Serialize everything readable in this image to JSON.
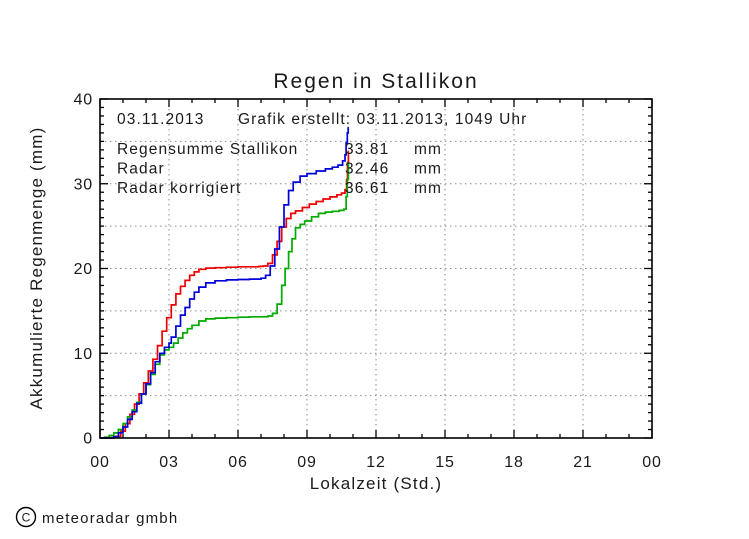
{
  "title": "Regen in Stallikon",
  "axes": {
    "y_label": "Akkumulierte Regenmenge (mm)",
    "x_label": "Lokalzeit (Std.)"
  },
  "annotation": {
    "date": "03.11.2013",
    "created": "Grafik erstellt: 03.11.2013, 1049 Uhr"
  },
  "legend": {
    "rows": [
      {
        "label": "Regensumme Stallikon",
        "value": "33.81",
        "unit": "mm",
        "color": "#ee0000"
      },
      {
        "label": "Radar",
        "value": "32.46",
        "unit": "mm",
        "color": "#00aa00"
      },
      {
        "label": "Radar korrigiert",
        "value": "36.61",
        "unit": "mm",
        "color": "#0000dd"
      }
    ]
  },
  "footer": {
    "copyright_symbol": "C",
    "copyright_text": "meteoradar gmbh"
  },
  "chart_data": {
    "type": "line",
    "title": "Regen in Stallikon",
    "xlabel": "Lokalzeit (Std.)",
    "ylabel": "Akkumulierte Regenmenge (mm)",
    "xlim": [
      0,
      24
    ],
    "ylim": [
      0,
      40
    ],
    "x_unit": "hours_local_time",
    "y_unit": "mm",
    "x_major_ticks": [
      0,
      3,
      6,
      9,
      12,
      15,
      18,
      21,
      24
    ],
    "x_tick_labels": [
      "00",
      "03",
      "06",
      "09",
      "12",
      "15",
      "18",
      "21",
      "00"
    ],
    "x_minor_step": 1,
    "y_major_ticks": [
      0,
      10,
      20,
      30,
      40
    ],
    "y_tick_labels": [
      "0",
      "10",
      "20",
      "30",
      "40"
    ],
    "y_minor_step": 1,
    "grid": {
      "style": "dotted",
      "x_lines": [
        3,
        6,
        9,
        12,
        15,
        18,
        21
      ],
      "y_lines": [
        5,
        10,
        15,
        20,
        25,
        30,
        35
      ]
    },
    "legend_position": "top-left-inside",
    "series": [
      {
        "name": "Regensumme Stallikon",
        "color": "#ee0000",
        "total_mm": 33.81,
        "points": [
          [
            0,
            0
          ],
          [
            0.5,
            0.05
          ],
          [
            0.7,
            0.2
          ],
          [
            0.9,
            0.8
          ],
          [
            1.1,
            1.7
          ],
          [
            1.3,
            2.8
          ],
          [
            1.5,
            4.0
          ],
          [
            1.7,
            5.2
          ],
          [
            1.9,
            6.5
          ],
          [
            2.1,
            7.9
          ],
          [
            2.3,
            9.3
          ],
          [
            2.5,
            10.9
          ],
          [
            2.7,
            12.6
          ],
          [
            2.9,
            14.2
          ],
          [
            3.1,
            15.7
          ],
          [
            3.3,
            17.0
          ],
          [
            3.5,
            17.9
          ],
          [
            3.7,
            18.6
          ],
          [
            3.9,
            19.2
          ],
          [
            4.1,
            19.6
          ],
          [
            4.3,
            19.9
          ],
          [
            4.6,
            20.05
          ],
          [
            5.0,
            20.1
          ],
          [
            5.5,
            20.15
          ],
          [
            6.0,
            20.2
          ],
          [
            6.5,
            20.2
          ],
          [
            6.9,
            20.25
          ],
          [
            7.1,
            20.3
          ],
          [
            7.3,
            20.6
          ],
          [
            7.5,
            21.6
          ],
          [
            7.7,
            23.2
          ],
          [
            7.9,
            24.9
          ],
          [
            8.1,
            25.9
          ],
          [
            8.3,
            26.5
          ],
          [
            8.5,
            26.8
          ],
          [
            8.8,
            27.2
          ],
          [
            9.1,
            27.6
          ],
          [
            9.4,
            27.9
          ],
          [
            9.7,
            28.2
          ],
          [
            10.0,
            28.45
          ],
          [
            10.3,
            28.7
          ],
          [
            10.5,
            28.9
          ],
          [
            10.65,
            29.3
          ],
          [
            10.72,
            30.5
          ],
          [
            10.76,
            32.5
          ],
          [
            10.8,
            33.81
          ],
          [
            10.82,
            33.81
          ]
        ]
      },
      {
        "name": "Radar",
        "color": "#00aa00",
        "total_mm": 32.46,
        "points": [
          [
            0,
            0
          ],
          [
            0.2,
            0.1
          ],
          [
            0.4,
            0.3
          ],
          [
            0.6,
            0.6
          ],
          [
            0.8,
            1.0
          ],
          [
            1.0,
            1.7
          ],
          [
            1.2,
            2.5
          ],
          [
            1.4,
            3.3
          ],
          [
            1.6,
            4.2
          ],
          [
            1.8,
            5.2
          ],
          [
            2.0,
            6.3
          ],
          [
            2.2,
            7.5
          ],
          [
            2.4,
            8.7
          ],
          [
            2.6,
            9.8
          ],
          [
            2.8,
            10.4
          ],
          [
            3.0,
            10.7
          ],
          [
            3.2,
            11.2
          ],
          [
            3.4,
            11.8
          ],
          [
            3.6,
            12.4
          ],
          [
            3.8,
            12.9
          ],
          [
            4.0,
            13.3
          ],
          [
            4.3,
            13.8
          ],
          [
            4.6,
            14.05
          ],
          [
            5.0,
            14.15
          ],
          [
            5.5,
            14.2
          ],
          [
            6.0,
            14.25
          ],
          [
            6.5,
            14.3
          ],
          [
            7.0,
            14.3
          ],
          [
            7.3,
            14.4
          ],
          [
            7.5,
            14.7
          ],
          [
            7.7,
            15.8
          ],
          [
            7.9,
            18.0
          ],
          [
            8.05,
            20.0
          ],
          [
            8.2,
            22.0
          ],
          [
            8.35,
            23.5
          ],
          [
            8.5,
            24.8
          ],
          [
            8.7,
            25.2
          ],
          [
            8.9,
            25.6
          ],
          [
            9.2,
            26.1
          ],
          [
            9.5,
            26.5
          ],
          [
            9.8,
            26.65
          ],
          [
            10.1,
            26.75
          ],
          [
            10.4,
            26.85
          ],
          [
            10.6,
            27.0
          ],
          [
            10.7,
            28.5
          ],
          [
            10.75,
            30.5
          ],
          [
            10.8,
            32.46
          ],
          [
            10.82,
            32.46
          ]
        ]
      },
      {
        "name": "Radar korrigiert",
        "color": "#0000dd",
        "total_mm": 36.61,
        "points": [
          [
            0,
            0
          ],
          [
            0.6,
            0.15
          ],
          [
            0.8,
            0.6
          ],
          [
            1.0,
            1.3
          ],
          [
            1.2,
            2.2
          ],
          [
            1.4,
            3.1
          ],
          [
            1.6,
            4.1
          ],
          [
            1.8,
            5.2
          ],
          [
            2.0,
            6.4
          ],
          [
            2.2,
            7.7
          ],
          [
            2.4,
            9.0
          ],
          [
            2.6,
            10.0
          ],
          [
            2.8,
            10.7
          ],
          [
            3.0,
            11.2
          ],
          [
            3.1,
            11.9
          ],
          [
            3.3,
            13.2
          ],
          [
            3.5,
            14.5
          ],
          [
            3.7,
            15.4
          ],
          [
            3.9,
            16.4
          ],
          [
            4.1,
            17.2
          ],
          [
            4.3,
            17.8
          ],
          [
            4.6,
            18.3
          ],
          [
            5.0,
            18.55
          ],
          [
            5.5,
            18.65
          ],
          [
            6.0,
            18.7
          ],
          [
            6.5,
            18.75
          ],
          [
            7.0,
            18.85
          ],
          [
            7.2,
            19.2
          ],
          [
            7.4,
            20.3
          ],
          [
            7.6,
            22.3
          ],
          [
            7.8,
            24.9
          ],
          [
            8.0,
            27.5
          ],
          [
            8.2,
            29.2
          ],
          [
            8.4,
            30.2
          ],
          [
            8.7,
            30.9
          ],
          [
            9.0,
            31.2
          ],
          [
            9.4,
            31.5
          ],
          [
            9.8,
            31.75
          ],
          [
            10.1,
            31.95
          ],
          [
            10.35,
            32.2
          ],
          [
            10.55,
            32.7
          ],
          [
            10.65,
            33.4
          ],
          [
            10.7,
            34.8
          ],
          [
            10.75,
            36.0
          ],
          [
            10.79,
            36.61
          ],
          [
            10.82,
            36.61
          ]
        ]
      }
    ]
  }
}
